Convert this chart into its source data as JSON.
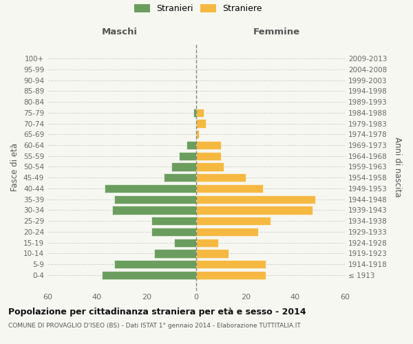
{
  "age_groups": [
    "100+",
    "95-99",
    "90-94",
    "85-89",
    "80-84",
    "75-79",
    "70-74",
    "65-69",
    "60-64",
    "55-59",
    "50-54",
    "45-49",
    "40-44",
    "35-39",
    "30-34",
    "25-29",
    "20-24",
    "15-19",
    "10-14",
    "5-9",
    "0-4"
  ],
  "birth_years": [
    "≤ 1913",
    "1914-1918",
    "1919-1923",
    "1924-1928",
    "1929-1933",
    "1934-1938",
    "1939-1943",
    "1944-1948",
    "1949-1953",
    "1954-1958",
    "1959-1963",
    "1964-1968",
    "1969-1973",
    "1974-1978",
    "1979-1983",
    "1984-1988",
    "1989-1993",
    "1994-1998",
    "1999-2003",
    "2004-2008",
    "2009-2013"
  ],
  "maschi": [
    0,
    0,
    0,
    0,
    0,
    1,
    0,
    0,
    4,
    7,
    10,
    13,
    37,
    33,
    34,
    18,
    18,
    9,
    17,
    33,
    38
  ],
  "femmine": [
    0,
    0,
    0,
    0,
    0,
    3,
    4,
    1,
    10,
    10,
    11,
    20,
    27,
    48,
    47,
    30,
    25,
    9,
    13,
    28,
    28
  ],
  "color_maschi": "#6b9e5e",
  "color_femmine": "#f5b942",
  "background_color": "#f7f7f2",
  "grid_color": "#cccccc",
  "title": "Popolazione per cittadinanza straniera per età e sesso - 2014",
  "subtitle": "COMUNE DI PROVAGLIO D'ISEO (BS) - Dati ISTAT 1° gennaio 2014 - Elaborazione TUTTITALIA.IT",
  "header_left": "Maschi",
  "header_right": "Femmine",
  "ylabel_left": "Fasce di età",
  "ylabel_right": "Anni di nascita",
  "legend_maschi": "Stranieri",
  "legend_femmine": "Straniere",
  "xlim": 60
}
